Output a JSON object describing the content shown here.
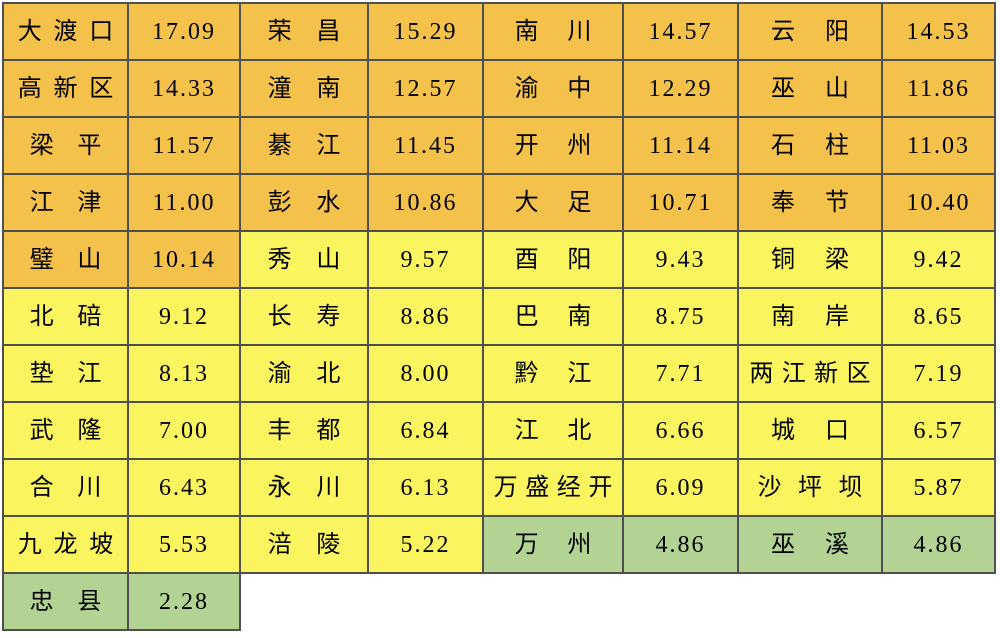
{
  "background": "#FFFFFF",
  "colors": {
    "orange": "#F4C24A",
    "yellow": "#FAF55E",
    "green": "#B2D394",
    "border": "#4F4F4F",
    "text": "#000000"
  },
  "chart_data": {
    "type": "table",
    "title": "",
    "layout": "4 name-value pairs per row, values sorted descending in reading order",
    "value_format": "fixed-2",
    "tier_colors": {
      "orange": "#F4C24A",
      "yellow": "#FAF55E",
      "green": "#B2D394"
    },
    "entries": [
      {
        "label": "大渡口",
        "value": 17.09,
        "display": "17.09",
        "tier": "orange"
      },
      {
        "label": "荣昌",
        "value": 15.29,
        "display": "15.29",
        "tier": "orange"
      },
      {
        "label": "南川",
        "value": 14.57,
        "display": "14.57",
        "tier": "orange"
      },
      {
        "label": "云阳",
        "value": 14.53,
        "display": "14.53",
        "tier": "orange"
      },
      {
        "label": "高新区",
        "value": 14.33,
        "display": "14.33",
        "tier": "orange"
      },
      {
        "label": "潼南",
        "value": 12.57,
        "display": "12.57",
        "tier": "orange"
      },
      {
        "label": "渝中",
        "value": 12.29,
        "display": "12.29",
        "tier": "orange"
      },
      {
        "label": "巫山",
        "value": 11.86,
        "display": "11.86",
        "tier": "orange"
      },
      {
        "label": "梁平",
        "value": 11.57,
        "display": "11.57",
        "tier": "orange"
      },
      {
        "label": "綦江",
        "value": 11.45,
        "display": "11.45",
        "tier": "orange"
      },
      {
        "label": "开州",
        "value": 11.14,
        "display": "11.14",
        "tier": "orange"
      },
      {
        "label": "石柱",
        "value": 11.03,
        "display": "11.03",
        "tier": "orange"
      },
      {
        "label": "江津",
        "value": 11.0,
        "display": "11.00",
        "tier": "orange"
      },
      {
        "label": "彭水",
        "value": 10.86,
        "display": "10.86",
        "tier": "orange"
      },
      {
        "label": "大足",
        "value": 10.71,
        "display": "10.71",
        "tier": "orange"
      },
      {
        "label": "奉节",
        "value": 10.4,
        "display": "10.40",
        "tier": "orange"
      },
      {
        "label": "璧山",
        "value": 10.14,
        "display": "10.14",
        "tier": "orange"
      },
      {
        "label": "秀山",
        "value": 9.57,
        "display": "9.57",
        "tier": "yellow"
      },
      {
        "label": "酉阳",
        "value": 9.43,
        "display": "9.43",
        "tier": "yellow"
      },
      {
        "label": "铜梁",
        "value": 9.42,
        "display": "9.42",
        "tier": "yellow"
      },
      {
        "label": "北碚",
        "value": 9.12,
        "display": "9.12",
        "tier": "yellow"
      },
      {
        "label": "长寿",
        "value": 8.86,
        "display": "8.86",
        "tier": "yellow"
      },
      {
        "label": "巴南",
        "value": 8.75,
        "display": "8.75",
        "tier": "yellow"
      },
      {
        "label": "南岸",
        "value": 8.65,
        "display": "8.65",
        "tier": "yellow"
      },
      {
        "label": "垫江",
        "value": 8.13,
        "display": "8.13",
        "tier": "yellow"
      },
      {
        "label": "渝北",
        "value": 8.0,
        "display": "8.00",
        "tier": "yellow"
      },
      {
        "label": "黔江",
        "value": 7.71,
        "display": "7.71",
        "tier": "yellow"
      },
      {
        "label": "两江新区",
        "value": 7.19,
        "display": "7.19",
        "tier": "yellow"
      },
      {
        "label": "武隆",
        "value": 7.0,
        "display": "7.00",
        "tier": "yellow"
      },
      {
        "label": "丰都",
        "value": 6.84,
        "display": "6.84",
        "tier": "yellow"
      },
      {
        "label": "江北",
        "value": 6.66,
        "display": "6.66",
        "tier": "yellow"
      },
      {
        "label": "城口",
        "value": 6.57,
        "display": "6.57",
        "tier": "yellow"
      },
      {
        "label": "合川",
        "value": 6.43,
        "display": "6.43",
        "tier": "yellow"
      },
      {
        "label": "永川",
        "value": 6.13,
        "display": "6.13",
        "tier": "yellow"
      },
      {
        "label": "万盛经开",
        "value": 6.09,
        "display": "6.09",
        "tier": "yellow"
      },
      {
        "label": "沙坪坝",
        "value": 5.87,
        "display": "5.87",
        "tier": "yellow"
      },
      {
        "label": "九龙坡",
        "value": 5.53,
        "display": "5.53",
        "tier": "yellow"
      },
      {
        "label": "涪陵",
        "value": 5.22,
        "display": "5.22",
        "tier": "yellow"
      },
      {
        "label": "万州",
        "value": 4.86,
        "display": "4.86",
        "tier": "green"
      },
      {
        "label": "巫溪",
        "value": 4.86,
        "display": "4.86",
        "tier": "green"
      },
      {
        "label": "忠县",
        "value": 2.28,
        "display": "2.28",
        "tier": "green"
      }
    ]
  }
}
